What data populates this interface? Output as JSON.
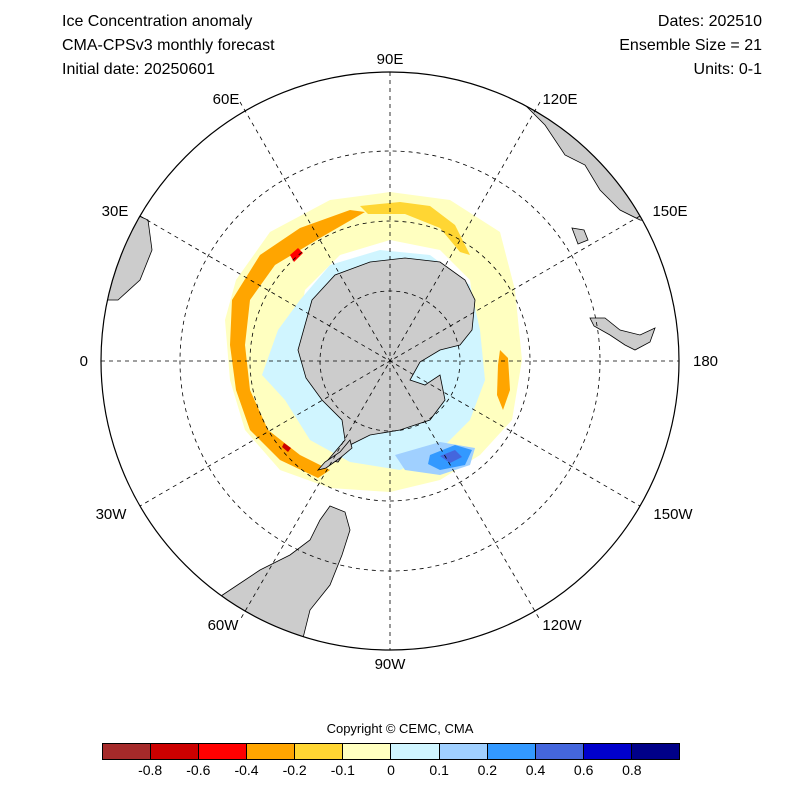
{
  "header": {
    "title": "Ice Concentration anomaly",
    "model": "CMA-CPSv3 monthly forecast",
    "initial_date": "Initial date: 20250601",
    "dates": "Dates: 202510",
    "ensemble": "Ensemble Size = 21",
    "units": "Units: 0-1"
  },
  "map": {
    "projection": "south polar stereographic",
    "longitude_labels": {
      "90E": "90E",
      "120E": "120E",
      "150E": "150E",
      "180": "180",
      "150W": "150W",
      "120W": "120W",
      "90W": "90W",
      "60W": "60W",
      "30W": "30W",
      "0": "0",
      "30E": "30E",
      "60E": "60E"
    },
    "land_color": "#cccccc",
    "grid": "dashed"
  },
  "colorbar": {
    "copyright": "Copyright © CEMC, CMA",
    "colors": [
      "#a52a2a",
      "#cc0000",
      "#ff0000",
      "#ffa500",
      "#ffd633",
      "#ffffc0",
      "#d0f5ff",
      "#a0d0ff",
      "#3399ff",
      "#4466dd",
      "#0000cc",
      "#000088"
    ],
    "ticks": [
      "-0.8",
      "-0.6",
      "-0.4",
      "-0.2",
      "-0.1",
      "0",
      "0.1",
      "0.2",
      "0.4",
      "0.6",
      "0.8"
    ]
  }
}
